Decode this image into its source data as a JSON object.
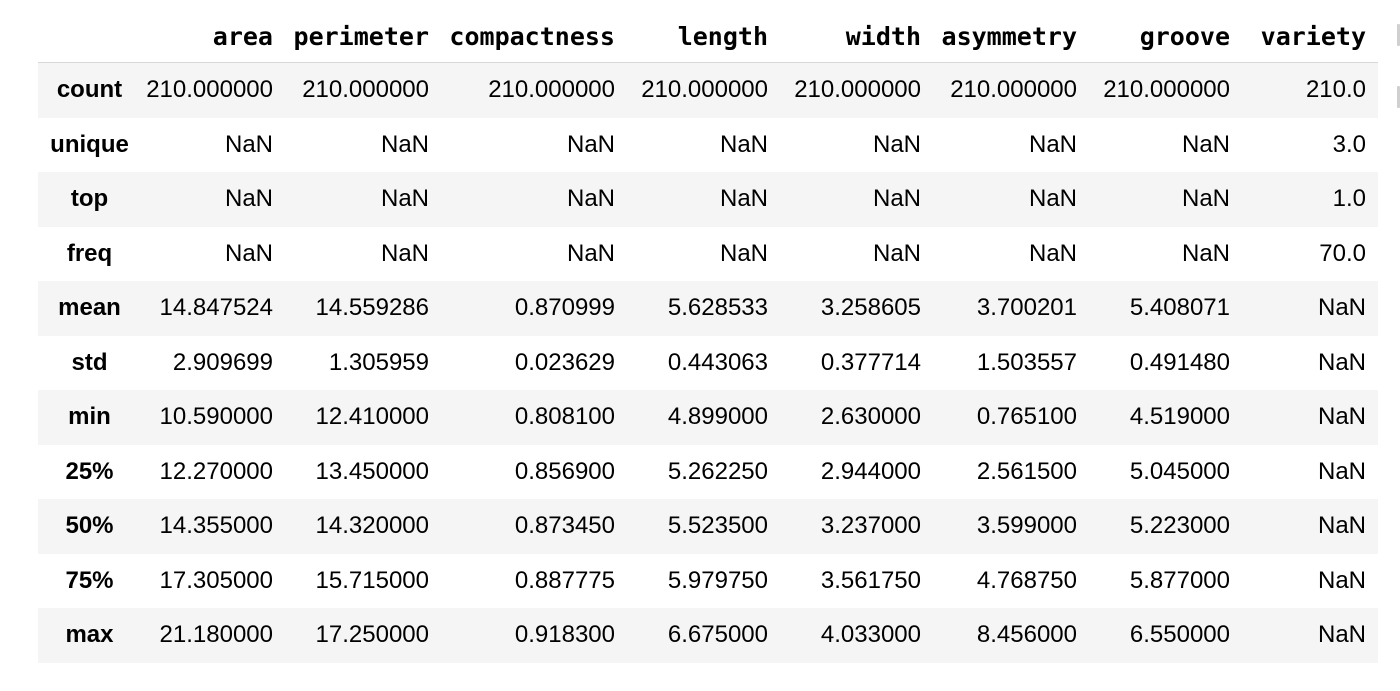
{
  "dataframe": {
    "columns": [
      "",
      "area",
      "perimeter",
      "compactness",
      "length",
      "width",
      "asymmetry",
      "groove",
      "variety"
    ],
    "rows": [
      {
        "index": "count",
        "values": [
          "210.000000",
          "210.000000",
          "210.000000",
          "210.000000",
          "210.000000",
          "210.000000",
          "210.000000",
          "210.0"
        ]
      },
      {
        "index": "unique",
        "values": [
          "NaN",
          "NaN",
          "NaN",
          "NaN",
          "NaN",
          "NaN",
          "NaN",
          "3.0"
        ]
      },
      {
        "index": "top",
        "values": [
          "NaN",
          "NaN",
          "NaN",
          "NaN",
          "NaN",
          "NaN",
          "NaN",
          "1.0"
        ]
      },
      {
        "index": "freq",
        "values": [
          "NaN",
          "NaN",
          "NaN",
          "NaN",
          "NaN",
          "NaN",
          "NaN",
          "70.0"
        ]
      },
      {
        "index": "mean",
        "values": [
          "14.847524",
          "14.559286",
          "0.870999",
          "5.628533",
          "3.258605",
          "3.700201",
          "5.408071",
          "NaN"
        ]
      },
      {
        "index": "std",
        "values": [
          "2.909699",
          "1.305959",
          "0.023629",
          "0.443063",
          "0.377714",
          "1.503557",
          "0.491480",
          "NaN"
        ]
      },
      {
        "index": "min",
        "values": [
          "10.590000",
          "12.410000",
          "0.808100",
          "4.899000",
          "2.630000",
          "0.765100",
          "4.519000",
          "NaN"
        ]
      },
      {
        "index": "25%",
        "values": [
          "12.270000",
          "13.450000",
          "0.856900",
          "5.262250",
          "2.944000",
          "2.561500",
          "5.045000",
          "NaN"
        ]
      },
      {
        "index": "50%",
        "values": [
          "14.355000",
          "14.320000",
          "0.873450",
          "5.523500",
          "3.237000",
          "3.599000",
          "5.223000",
          "NaN"
        ]
      },
      {
        "index": "75%",
        "values": [
          "17.305000",
          "15.715000",
          "0.887775",
          "5.979750",
          "3.561750",
          "4.768750",
          "5.877000",
          "NaN"
        ]
      },
      {
        "index": "max",
        "values": [
          "21.180000",
          "17.250000",
          "0.918300",
          "6.675000",
          "4.033000",
          "8.456000",
          "6.550000",
          "NaN"
        ]
      }
    ]
  },
  "colors": {
    "stripe": "#f5f5f5",
    "header_border": "#d8d8d8",
    "text": "#000000"
  }
}
